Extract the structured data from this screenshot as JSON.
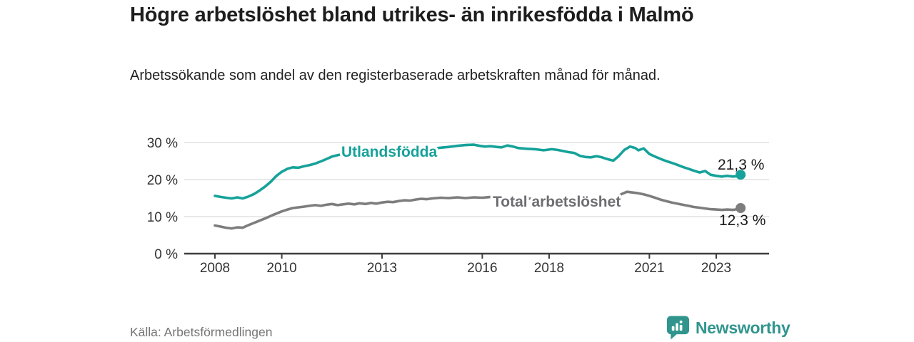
{
  "header": {
    "title": "Högre arbetslöshet bland utrikes- än inrikesfödda i Malmö",
    "subtitle": "Arbetssökande som andel av den registerbaserade arbetskraften månad för månad."
  },
  "footer": {
    "source": "Källa: Arbetsförmedlingen",
    "brand": "Newsworthy",
    "brand_icon": "newsworthy-speech-bubble-bar-chart"
  },
  "colors": {
    "accent_teal": "#16a29a",
    "line_gray": "#7d7d7d",
    "gray_label": "#6e6e72",
    "axis": "#3f3f3f",
    "grid": "#dcdcdc",
    "tick_text": "#333333",
    "end_label_text": "#1a1a1a",
    "brand_teal": "#31958e"
  },
  "chart_data": {
    "type": "line",
    "title": "Högre arbetslöshet bland utrikes- än inrikesfödda i Malmö",
    "subtitle": "Arbetssökande som andel av den registerbaserade arbetskraften månad för månad.",
    "xlabel": "",
    "ylabel": "",
    "unit": "%",
    "grid": "horizontal",
    "legend_position": "inline-on-lines",
    "xlim": [
      2007.1,
      2024.6
    ],
    "ylim": [
      0,
      33
    ],
    "x_ticks": [
      {
        "value": 2008,
        "label": "2008"
      },
      {
        "value": 2010,
        "label": "2010"
      },
      {
        "value": 2013,
        "label": "2013"
      },
      {
        "value": 2016,
        "label": "2016"
      },
      {
        "value": 2018,
        "label": "2018"
      },
      {
        "value": 2021,
        "label": "2021"
      },
      {
        "value": 2023,
        "label": "2023"
      }
    ],
    "y_ticks": [
      {
        "value": 0,
        "label": "0 %"
      },
      {
        "value": 10,
        "label": "10 %"
      },
      {
        "value": 20,
        "label": "20 %"
      },
      {
        "value": 30,
        "label": "30 %"
      }
    ],
    "series": [
      {
        "name": "Utlandsfödda",
        "color": "#16a29a",
        "label_color": "#16a29a",
        "end_label": "21,3 %",
        "end_value": 21.3,
        "points": [
          [
            2008.0,
            15.6
          ],
          [
            2008.17,
            15.3
          ],
          [
            2008.33,
            15.1
          ],
          [
            2008.5,
            14.9
          ],
          [
            2008.67,
            15.2
          ],
          [
            2008.83,
            14.9
          ],
          [
            2009.0,
            15.4
          ],
          [
            2009.17,
            16.1
          ],
          [
            2009.33,
            17.0
          ],
          [
            2009.5,
            18.1
          ],
          [
            2009.67,
            19.4
          ],
          [
            2009.83,
            20.9
          ],
          [
            2010.0,
            22.1
          ],
          [
            2010.17,
            22.9
          ],
          [
            2010.33,
            23.3
          ],
          [
            2010.5,
            23.2
          ],
          [
            2010.67,
            23.6
          ],
          [
            2010.83,
            23.9
          ],
          [
            2011.0,
            24.3
          ],
          [
            2011.17,
            24.9
          ],
          [
            2011.33,
            25.5
          ],
          [
            2011.5,
            26.2
          ],
          [
            2011.67,
            26.6
          ],
          [
            2011.83,
            26.9
          ],
          [
            2012.0,
            26.8
          ],
          [
            2012.25,
            27.1
          ],
          [
            2012.5,
            27.3
          ],
          [
            2012.75,
            27.4
          ],
          [
            2013.0,
            27.5
          ],
          [
            2013.25,
            27.6
          ],
          [
            2013.5,
            27.7
          ],
          [
            2013.75,
            27.9
          ],
          [
            2014.0,
            28.0
          ],
          [
            2014.25,
            28.2
          ],
          [
            2014.5,
            28.3
          ],
          [
            2014.75,
            28.6
          ],
          [
            2015.0,
            28.8
          ],
          [
            2015.25,
            29.1
          ],
          [
            2015.5,
            29.3
          ],
          [
            2015.75,
            29.4
          ],
          [
            2015.92,
            29.1
          ],
          [
            2016.08,
            28.9
          ],
          [
            2016.25,
            29.0
          ],
          [
            2016.42,
            28.8
          ],
          [
            2016.58,
            28.7
          ],
          [
            2016.75,
            29.2
          ],
          [
            2016.92,
            28.9
          ],
          [
            2017.08,
            28.5
          ],
          [
            2017.33,
            28.3
          ],
          [
            2017.58,
            28.2
          ],
          [
            2017.83,
            27.9
          ],
          [
            2018.08,
            28.2
          ],
          [
            2018.25,
            28.0
          ],
          [
            2018.42,
            27.7
          ],
          [
            2018.58,
            27.4
          ],
          [
            2018.75,
            27.2
          ],
          [
            2018.92,
            26.4
          ],
          [
            2019.08,
            26.1
          ],
          [
            2019.25,
            26.0
          ],
          [
            2019.42,
            26.3
          ],
          [
            2019.58,
            26.0
          ],
          [
            2019.75,
            25.5
          ],
          [
            2019.92,
            25.1
          ],
          [
            2020.08,
            26.3
          ],
          [
            2020.25,
            28.0
          ],
          [
            2020.42,
            28.9
          ],
          [
            2020.58,
            28.5
          ],
          [
            2020.67,
            27.9
          ],
          [
            2020.83,
            28.4
          ],
          [
            2021.0,
            26.9
          ],
          [
            2021.17,
            26.2
          ],
          [
            2021.33,
            25.6
          ],
          [
            2021.5,
            25.0
          ],
          [
            2021.67,
            24.5
          ],
          [
            2021.83,
            24.0
          ],
          [
            2022.0,
            23.4
          ],
          [
            2022.17,
            22.9
          ],
          [
            2022.33,
            22.4
          ],
          [
            2022.5,
            21.9
          ],
          [
            2022.67,
            22.3
          ],
          [
            2022.83,
            21.3
          ],
          [
            2023.0,
            21.0
          ],
          [
            2023.17,
            20.8
          ],
          [
            2023.33,
            21.0
          ],
          [
            2023.5,
            20.8
          ],
          [
            2023.62,
            20.9
          ],
          [
            2023.73,
            21.3
          ]
        ]
      },
      {
        "name": "Total arbetslöshet",
        "color": "#7d7d7d",
        "label_color": "#6e6e72",
        "end_label": "12,3 %",
        "end_value": 12.3,
        "points": [
          [
            2008.0,
            7.6
          ],
          [
            2008.17,
            7.3
          ],
          [
            2008.33,
            7.0
          ],
          [
            2008.5,
            6.8
          ],
          [
            2008.67,
            7.1
          ],
          [
            2008.83,
            7.0
          ],
          [
            2009.0,
            7.7
          ],
          [
            2009.25,
            8.6
          ],
          [
            2009.5,
            9.5
          ],
          [
            2009.75,
            10.5
          ],
          [
            2010.0,
            11.4
          ],
          [
            2010.17,
            11.9
          ],
          [
            2010.33,
            12.3
          ],
          [
            2010.5,
            12.5
          ],
          [
            2010.67,
            12.7
          ],
          [
            2010.83,
            12.9
          ],
          [
            2011.0,
            13.1
          ],
          [
            2011.17,
            12.9
          ],
          [
            2011.33,
            13.2
          ],
          [
            2011.5,
            13.4
          ],
          [
            2011.67,
            13.1
          ],
          [
            2011.83,
            13.3
          ],
          [
            2012.0,
            13.5
          ],
          [
            2012.17,
            13.3
          ],
          [
            2012.33,
            13.6
          ],
          [
            2012.5,
            13.4
          ],
          [
            2012.67,
            13.7
          ],
          [
            2012.83,
            13.5
          ],
          [
            2013.0,
            13.8
          ],
          [
            2013.17,
            14.0
          ],
          [
            2013.33,
            13.9
          ],
          [
            2013.5,
            14.2
          ],
          [
            2013.67,
            14.4
          ],
          [
            2013.83,
            14.3
          ],
          [
            2014.0,
            14.6
          ],
          [
            2014.17,
            14.8
          ],
          [
            2014.33,
            14.7
          ],
          [
            2014.5,
            14.9
          ],
          [
            2014.75,
            15.1
          ],
          [
            2015.0,
            15.0
          ],
          [
            2015.25,
            15.2
          ],
          [
            2015.5,
            15.0
          ],
          [
            2015.75,
            15.2
          ],
          [
            2016.0,
            15.1
          ],
          [
            2016.25,
            15.3
          ],
          [
            2016.5,
            15.1
          ],
          [
            2016.75,
            15.0
          ],
          [
            2017.0,
            15.1
          ],
          [
            2017.25,
            14.9
          ],
          [
            2017.5,
            14.8
          ],
          [
            2017.75,
            14.7
          ],
          [
            2018.0,
            14.9
          ],
          [
            2018.25,
            14.8
          ],
          [
            2018.5,
            14.6
          ],
          [
            2018.75,
            14.4
          ],
          [
            2019.0,
            14.3
          ],
          [
            2019.25,
            14.2
          ],
          [
            2019.5,
            14.1
          ],
          [
            2019.75,
            14.3
          ],
          [
            2020.0,
            15.1
          ],
          [
            2020.17,
            16.1
          ],
          [
            2020.33,
            16.7
          ],
          [
            2020.5,
            16.5
          ],
          [
            2020.67,
            16.3
          ],
          [
            2020.83,
            16.0
          ],
          [
            2021.0,
            15.6
          ],
          [
            2021.17,
            15.1
          ],
          [
            2021.33,
            14.6
          ],
          [
            2021.5,
            14.2
          ],
          [
            2021.67,
            13.8
          ],
          [
            2021.83,
            13.5
          ],
          [
            2022.0,
            13.2
          ],
          [
            2022.17,
            12.9
          ],
          [
            2022.33,
            12.6
          ],
          [
            2022.5,
            12.4
          ],
          [
            2022.67,
            12.2
          ],
          [
            2022.83,
            12.0
          ],
          [
            2023.0,
            11.9
          ],
          [
            2023.17,
            11.8
          ],
          [
            2023.33,
            11.9
          ],
          [
            2023.5,
            11.8
          ],
          [
            2023.62,
            12.0
          ],
          [
            2023.73,
            12.3
          ]
        ]
      }
    ]
  }
}
